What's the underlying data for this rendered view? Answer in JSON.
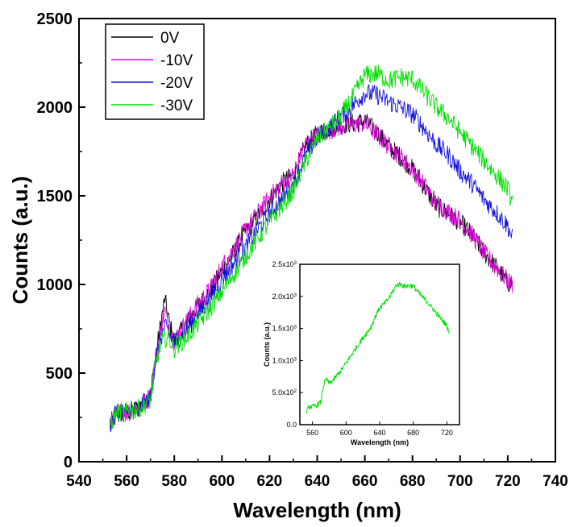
{
  "chart_data": [
    {
      "type": "line",
      "title": "",
      "xlabel": "Wavelength (nm)",
      "ylabel": "Counts (a.u.)",
      "xlim": [
        540,
        740
      ],
      "ylim": [
        0,
        2500
      ],
      "xticks": [
        540,
        560,
        580,
        600,
        620,
        640,
        660,
        680,
        700,
        720,
        740
      ],
      "yticks": [
        0,
        500,
        1000,
        1500,
        2000,
        2500
      ],
      "grid": false,
      "legend_position": "top-left",
      "x": [
        553,
        556,
        560,
        565,
        570,
        572,
        574,
        576,
        578,
        580,
        585,
        590,
        595,
        600,
        605,
        610,
        615,
        620,
        625,
        630,
        635,
        640,
        645,
        650,
        655,
        660,
        665,
        670,
        675,
        680,
        685,
        690,
        695,
        700,
        705,
        710,
        715,
        720,
        722
      ],
      "series": [
        {
          "name": "0V",
          "color": "#000000",
          "values": [
            210,
            280,
            280,
            300,
            380,
            580,
            750,
            920,
            780,
            680,
            780,
            880,
            960,
            1080,
            1180,
            1300,
            1380,
            1480,
            1570,
            1620,
            1780,
            1850,
            1880,
            1900,
            1910,
            1920,
            1860,
            1780,
            1720,
            1650,
            1550,
            1440,
            1400,
            1350,
            1280,
            1180,
            1100,
            1010,
            1000
          ]
        },
        {
          "name": "-10V",
          "color": "#e000e0",
          "values": [
            210,
            280,
            280,
            300,
            370,
            570,
            720,
            850,
            760,
            680,
            790,
            890,
            970,
            1100,
            1200,
            1310,
            1400,
            1490,
            1570,
            1620,
            1790,
            1840,
            1870,
            1890,
            1900,
            1910,
            1850,
            1780,
            1720,
            1650,
            1560,
            1460,
            1410,
            1360,
            1280,
            1180,
            1100,
            1020,
            1000
          ]
        },
        {
          "name": "-20V",
          "color": "#1010e0",
          "values": [
            210,
            280,
            280,
            300,
            360,
            560,
            680,
            760,
            720,
            670,
            740,
            830,
            920,
            1030,
            1120,
            1210,
            1310,
            1400,
            1480,
            1560,
            1720,
            1830,
            1880,
            1950,
            2010,
            2080,
            2070,
            2030,
            2000,
            1960,
            1880,
            1790,
            1730,
            1640,
            1570,
            1480,
            1410,
            1330,
            1260
          ]
        },
        {
          "name": "-30V",
          "color": "#00e000",
          "values": [
            210,
            280,
            280,
            300,
            350,
            540,
            650,
            700,
            690,
            640,
            700,
            780,
            860,
            960,
            1060,
            1160,
            1260,
            1350,
            1440,
            1530,
            1690,
            1820,
            1880,
            1950,
            2060,
            2180,
            2190,
            2150,
            2170,
            2160,
            2080,
            2000,
            1940,
            1860,
            1780,
            1700,
            1620,
            1540,
            1460
          ]
        }
      ]
    },
    {
      "type": "line",
      "title": "",
      "xlabel": "Wavelength (nm)",
      "ylabel": "Counts (a.u.)",
      "xlim": [
        545,
        735
      ],
      "ylim": [
        0,
        2500
      ],
      "xticks": [
        560,
        600,
        640,
        680,
        720
      ],
      "yticks": [
        {
          "value": 0,
          "mant": "0.0",
          "exp": ""
        },
        {
          "value": 500,
          "mant": "5.0x10",
          "exp": "2"
        },
        {
          "value": 1000,
          "mant": "1.0x10",
          "exp": "3"
        },
        {
          "value": 1500,
          "mant": "1.5x10",
          "exp": "3"
        },
        {
          "value": 2000,
          "mant": "2.0x10",
          "exp": "3"
        },
        {
          "value": 2500,
          "mant": "2.5x10",
          "exp": "3"
        }
      ],
      "grid": false,
      "x": [
        553,
        556,
        560,
        565,
        570,
        572,
        574,
        576,
        578,
        580,
        585,
        590,
        595,
        600,
        605,
        610,
        615,
        620,
        625,
        630,
        635,
        640,
        645,
        650,
        655,
        660,
        665,
        670,
        675,
        680,
        685,
        690,
        695,
        700,
        705,
        710,
        715,
        720,
        722
      ],
      "series": [
        {
          "color": "#00e000",
          "values": [
            210,
            280,
            280,
            300,
            350,
            540,
            650,
            700,
            690,
            640,
            700,
            780,
            860,
            960,
            1060,
            1160,
            1260,
            1350,
            1440,
            1530,
            1690,
            1820,
            1880,
            1950,
            2060,
            2180,
            2190,
            2150,
            2170,
            2160,
            2080,
            2000,
            1940,
            1860,
            1780,
            1700,
            1620,
            1540,
            1460
          ]
        }
      ]
    }
  ]
}
